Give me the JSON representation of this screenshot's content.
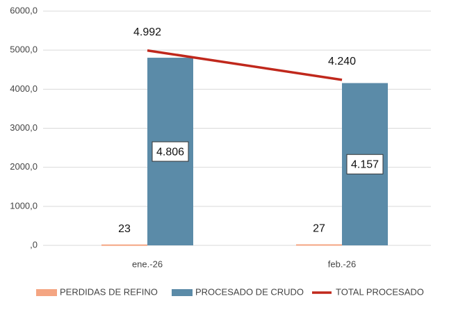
{
  "chart_data": {
    "type": "bar-line",
    "categories": [
      "ene.-26",
      "feb.-26"
    ],
    "series": [
      {
        "name": "PERDIDAS DE REFINO",
        "type": "bar",
        "color": "#f4a582",
        "values": [
          23,
          27
        ],
        "value_labels": [
          "23",
          "27"
        ]
      },
      {
        "name": "PROCESADO DE CRUDO",
        "type": "bar",
        "color": "#5b8ba8",
        "values": [
          4806,
          4157
        ],
        "value_labels": [
          "4.806",
          "4.157"
        ]
      },
      {
        "name": "TOTAL PROCESADO",
        "type": "line",
        "color": "#c0281c",
        "values": [
          4992,
          4240
        ],
        "value_labels": [
          "4.992",
          "4.240"
        ]
      }
    ],
    "ylim": [
      0,
      6000
    ],
    "yticks": [
      {
        "value": 0,
        "label": ",0"
      },
      {
        "value": 1000,
        "label": "1000,0"
      },
      {
        "value": 2000,
        "label": "2000,0"
      },
      {
        "value": 3000,
        "label": "3000,0"
      },
      {
        "value": 4000,
        "label": "4000,0"
      },
      {
        "value": 5000,
        "label": "5000,0"
      },
      {
        "value": 6000,
        "label": "6000,0"
      }
    ],
    "grid": true,
    "legend": "bottom"
  }
}
